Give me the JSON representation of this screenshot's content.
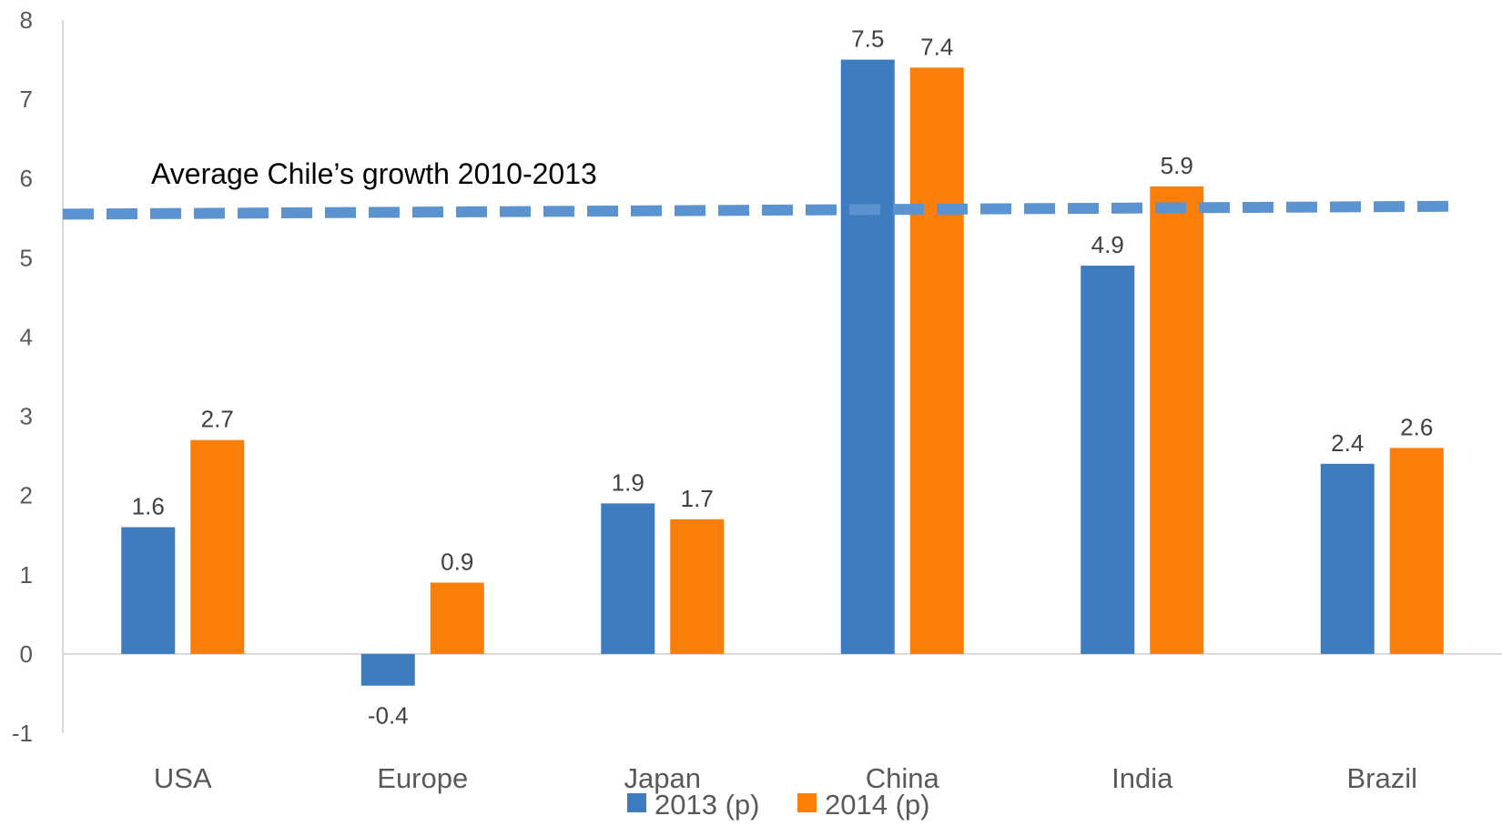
{
  "chart_data": {
    "type": "bar",
    "categories": [
      "USA",
      "Europe",
      "Japan",
      "China",
      "India",
      "Brazil"
    ],
    "series": [
      {
        "name": "2013 (p)",
        "color": "#3F7BBF",
        "values": [
          1.6,
          -0.4,
          1.9,
          7.5,
          4.9,
          2.4
        ]
      },
      {
        "name": "2014 (p)",
        "color": "#F97F0A",
        "values": [
          2.7,
          0.9,
          1.7,
          7.4,
          5.9,
          2.6
        ]
      }
    ],
    "ylim": [
      -1,
      8
    ],
    "yticks": [
      -1,
      0,
      1,
      2,
      3,
      4,
      5,
      6,
      7,
      8
    ],
    "reference_line": {
      "label": "Average Chile’s growth 2010-2013",
      "y_start": 5.55,
      "y_end": 5.65,
      "color": "#5B93D0",
      "style": "dashed"
    },
    "legend_position": "bottom",
    "grid": false,
    "axis_color": "#D9D9D9"
  }
}
